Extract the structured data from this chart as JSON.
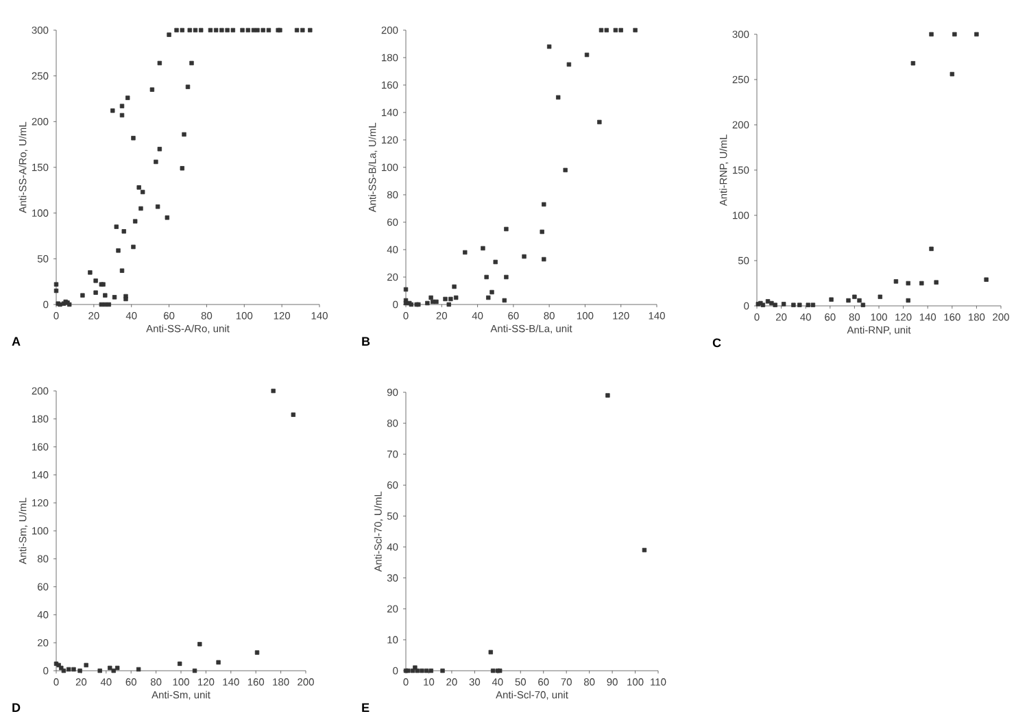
{
  "chart_data": [
    {
      "type": "scatter",
      "xlabel": "Anti-SS-A/Ro, unit",
      "ylabel": "Anti-SS-A/Ro, U/mL",
      "annotations": [
        "A"
      ],
      "color": "#333333",
      "marker": "square",
      "x": [
        0,
        0,
        1,
        2,
        4,
        5,
        6,
        7,
        14,
        18,
        21,
        21,
        24,
        25,
        24,
        26,
        28,
        26,
        31,
        30,
        35,
        35,
        38,
        32,
        33,
        36,
        35,
        37,
        37,
        41,
        41,
        42,
        44,
        46,
        45,
        51,
        55,
        53,
        55,
        54,
        59,
        60,
        67,
        68,
        70,
        72,
        64,
        67,
        71,
        74,
        77,
        82,
        85,
        88,
        91,
        94,
        99,
        102,
        105,
        107,
        110,
        113,
        118,
        119,
        128,
        131,
        135
      ],
      "values": [
        22,
        15,
        1,
        0,
        1,
        3,
        2,
        0,
        10,
        35,
        26,
        13,
        22,
        22,
        0,
        0,
        0,
        10,
        8,
        212,
        207,
        217,
        226,
        85,
        59,
        80,
        37,
        9,
        6,
        182,
        63,
        91,
        128,
        123,
        105,
        235,
        264,
        156,
        170,
        107,
        95,
        295,
        149,
        186,
        238,
        264,
        300,
        300,
        300,
        300,
        300,
        300,
        300,
        300,
        300,
        300,
        300,
        300,
        300,
        300,
        300,
        300,
        300,
        300,
        300,
        300,
        300
      ],
      "xlim": [
        0,
        140
      ],
      "ylim": [
        0,
        300
      ],
      "xticks": [
        0,
        20,
        40,
        60,
        80,
        100,
        120,
        140
      ],
      "yticks": [
        0,
        50,
        100,
        150,
        200,
        250,
        300
      ]
    },
    {
      "type": "scatter",
      "xlabel": "Anti-SS-B/La, unit",
      "ylabel": "Anti-SS-B/La, U/mL",
      "annotations": [
        "B"
      ],
      "color": "#333333",
      "marker": "square",
      "x": [
        0,
        0,
        0,
        2,
        3,
        6,
        7,
        12,
        14,
        15,
        17,
        22,
        24,
        25,
        27,
        28,
        33,
        43,
        45,
        46,
        48,
        50,
        56,
        56,
        55,
        66,
        76,
        77,
        77,
        80,
        85,
        89,
        91,
        101,
        108,
        109,
        112,
        117,
        120,
        128
      ],
      "values": [
        11,
        3,
        1,
        1,
        0,
        0,
        0,
        1,
        5,
        2,
        2,
        4,
        0,
        4,
        13,
        5,
        38,
        41,
        20,
        5,
        9,
        31,
        55,
        20,
        3,
        35,
        53,
        73,
        33,
        188,
        151,
        98,
        175,
        182,
        133,
        200,
        200,
        200,
        200,
        200
      ],
      "xlim": [
        0,
        140
      ],
      "ylim": [
        0,
        200
      ],
      "xticks": [
        0,
        20,
        40,
        60,
        80,
        100,
        120,
        140
      ],
      "yticks": [
        0,
        20,
        40,
        60,
        80,
        100,
        120,
        140,
        160,
        180,
        200
      ]
    },
    {
      "type": "scatter",
      "xlabel": "Anti-RNP, unit",
      "ylabel": "Anti-RNP, U/mL",
      "annotations": [
        "C"
      ],
      "color": "#333333",
      "marker": "square",
      "x": [
        1,
        3,
        5,
        9,
        12,
        15,
        22,
        30,
        35,
        42,
        46,
        61,
        75,
        80,
        84,
        87,
        101,
        114,
        124,
        124,
        128,
        135,
        143,
        143,
        147,
        160,
        162,
        180,
        188
      ],
      "values": [
        2,
        3,
        1,
        5,
        3,
        1,
        2,
        1,
        1,
        1,
        1,
        7,
        6,
        10,
        6,
        1,
        10,
        27,
        25,
        6,
        268,
        25,
        300,
        63,
        26,
        256,
        300,
        300,
        29
      ],
      "xlim": [
        0,
        200
      ],
      "ylim": [
        0,
        300
      ],
      "xticks": [
        0,
        20,
        40,
        60,
        80,
        100,
        120,
        140,
        160,
        180,
        200
      ],
      "yticks": [
        0,
        50,
        100,
        150,
        200,
        250,
        300
      ]
    },
    {
      "type": "scatter",
      "xlabel": "Anti-Sm, unit",
      "ylabel": "Anti-Sm, U/mL",
      "annotations": [
        "D"
      ],
      "color": "#333333",
      "marker": "square",
      "x": [
        0,
        2,
        4,
        6,
        10,
        14,
        19,
        24,
        35,
        43,
        46,
        49,
        66,
        99,
        111,
        115,
        130,
        161,
        174,
        190
      ],
      "values": [
        5,
        4,
        2,
        0,
        1,
        1,
        0,
        4,
        0,
        2,
        0,
        2,
        1,
        5,
        0,
        19,
        6,
        13,
        200,
        183
      ],
      "xlim": [
        0,
        200
      ],
      "ylim": [
        0,
        200
      ],
      "xticks": [
        0,
        20,
        40,
        60,
        80,
        100,
        120,
        140,
        160,
        180,
        200
      ],
      "yticks": [
        0,
        20,
        40,
        60,
        80,
        100,
        120,
        140,
        160,
        180,
        200
      ]
    },
    {
      "type": "scatter",
      "xlabel": "Anti-Scl-70, unit",
      "ylabel": "Anti-Scl-70, U/mL",
      "annotations": [
        "E"
      ],
      "color": "#333333",
      "marker": "square",
      "x": [
        0,
        1,
        3,
        4,
        5,
        7,
        9,
        11,
        16,
        37,
        38,
        40,
        41,
        88,
        104
      ],
      "values": [
        0,
        0,
        0,
        1,
        0,
        0,
        0,
        0,
        0,
        6,
        0,
        0,
        0,
        89,
        39
      ],
      "xlim": [
        0,
        110
      ],
      "ylim": [
        0,
        90
      ],
      "xticks": [
        0,
        10,
        20,
        30,
        40,
        50,
        60,
        70,
        80,
        90,
        100,
        110
      ],
      "yticks": [
        0,
        10,
        20,
        30,
        40,
        50,
        60,
        70,
        80,
        90
      ]
    }
  ]
}
